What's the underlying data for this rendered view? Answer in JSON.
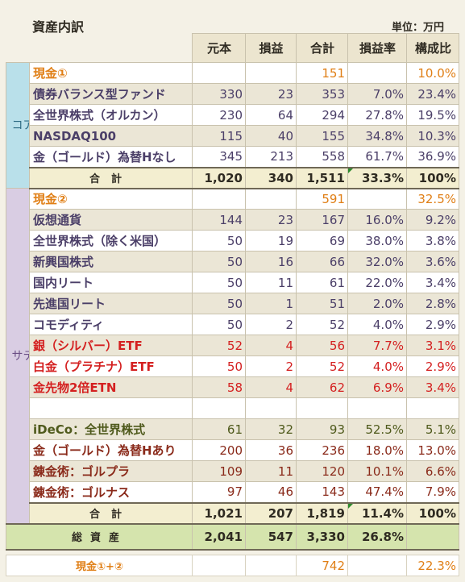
{
  "title": "資産内訳",
  "unit": "単位：万円",
  "columns": [
    "元本",
    "損益",
    "合計",
    "損益率",
    "構成比"
  ],
  "core": {
    "label": "コア資産",
    "rows": [
      {
        "name": "現金①",
        "principal": "",
        "pnl": "",
        "total": "151",
        "rate": "",
        "share": "10.0%"
      },
      {
        "name": "債券バランス型ファンド",
        "principal": "330",
        "pnl": "23",
        "total": "353",
        "rate": "7.0%",
        "share": "23.4%"
      },
      {
        "name": "全世界株式（オルカン）",
        "principal": "230",
        "pnl": "64",
        "total": "294",
        "rate": "27.8%",
        "share": "19.5%"
      },
      {
        "name": "NASDAQ100",
        "principal": "115",
        "pnl": "40",
        "total": "155",
        "rate": "34.8%",
        "share": "10.3%"
      },
      {
        "name": "金（ゴールド）為替Hなし",
        "principal": "345",
        "pnl": "213",
        "total": "558",
        "rate": "61.7%",
        "share": "36.9%"
      }
    ],
    "subtotal": {
      "name": "合計",
      "principal": "1,020",
      "pnl": "340",
      "total": "1,511",
      "rate": "33.3%",
      "share": "100%"
    }
  },
  "satellite": {
    "label": "サテライト資産",
    "rows": [
      {
        "name": "現金②",
        "principal": "",
        "pnl": "",
        "total": "591",
        "rate": "",
        "share": "32.5%"
      },
      {
        "name": "仮想通貨",
        "principal": "144",
        "pnl": "23",
        "total": "167",
        "rate": "16.0%",
        "share": "9.2%"
      },
      {
        "name": "全世界株式（除く米国）",
        "principal": "50",
        "pnl": "19",
        "total": "69",
        "rate": "38.0%",
        "share": "3.8%"
      },
      {
        "name": "新興国株式",
        "principal": "50",
        "pnl": "16",
        "total": "66",
        "rate": "32.0%",
        "share": "3.6%"
      },
      {
        "name": "国内リート",
        "principal": "50",
        "pnl": "11",
        "total": "61",
        "rate": "22.0%",
        "share": "3.4%"
      },
      {
        "name": "先進国リート",
        "principal": "50",
        "pnl": "1",
        "total": "51",
        "rate": "2.0%",
        "share": "2.8%"
      },
      {
        "name": "コモディティ",
        "principal": "50",
        "pnl": "2",
        "total": "52",
        "rate": "4.0%",
        "share": "2.9%"
      },
      {
        "name": "銀（シルバー）ETF",
        "principal": "52",
        "pnl": "4",
        "total": "56",
        "rate": "7.7%",
        "share": "3.1%"
      },
      {
        "name": "白金（プラチナ）ETF",
        "principal": "50",
        "pnl": "2",
        "total": "52",
        "rate": "4.0%",
        "share": "2.9%"
      },
      {
        "name": "金先物2倍ETN",
        "principal": "58",
        "pnl": "4",
        "total": "62",
        "rate": "6.9%",
        "share": "3.4%"
      },
      {
        "name": "",
        "principal": "",
        "pnl": "",
        "total": "",
        "rate": "",
        "share": ""
      },
      {
        "name": "iDeCo：全世界株式",
        "principal": "61",
        "pnl": "32",
        "total": "93",
        "rate": "52.5%",
        "share": "5.1%"
      },
      {
        "name": "金（ゴールド）為替Hあり",
        "principal": "200",
        "pnl": "36",
        "total": "236",
        "rate": "18.0%",
        "share": "13.0%"
      },
      {
        "name": "錬金術：ゴルプラ",
        "principal": "109",
        "pnl": "11",
        "total": "120",
        "rate": "10.1%",
        "share": "6.6%"
      },
      {
        "name": "錬金術：ゴルナス",
        "principal": "97",
        "pnl": "46",
        "total": "143",
        "rate": "47.4%",
        "share": "7.9%"
      }
    ],
    "subtotal": {
      "name": "合計",
      "principal": "1,021",
      "pnl": "207",
      "total": "1,819",
      "rate": "11.4%",
      "share": "100%"
    }
  },
  "grand_total": {
    "name": "総資産",
    "principal": "2,041",
    "pnl": "547",
    "total": "3,330",
    "rate": "26.8%",
    "share": ""
  },
  "cash_total": {
    "name": "現金①+②",
    "total": "742",
    "share": "22.3%"
  },
  "colors": {
    "cash": "#e07f16",
    "purple": "#4b3f68",
    "red": "#d42020",
    "brown": "#8a2a1a",
    "olive": "#4f5a1c",
    "core_band": "#b9e0ea",
    "satellite_band": "#d9cde3",
    "grand_total_row": "#d5e4ad"
  }
}
